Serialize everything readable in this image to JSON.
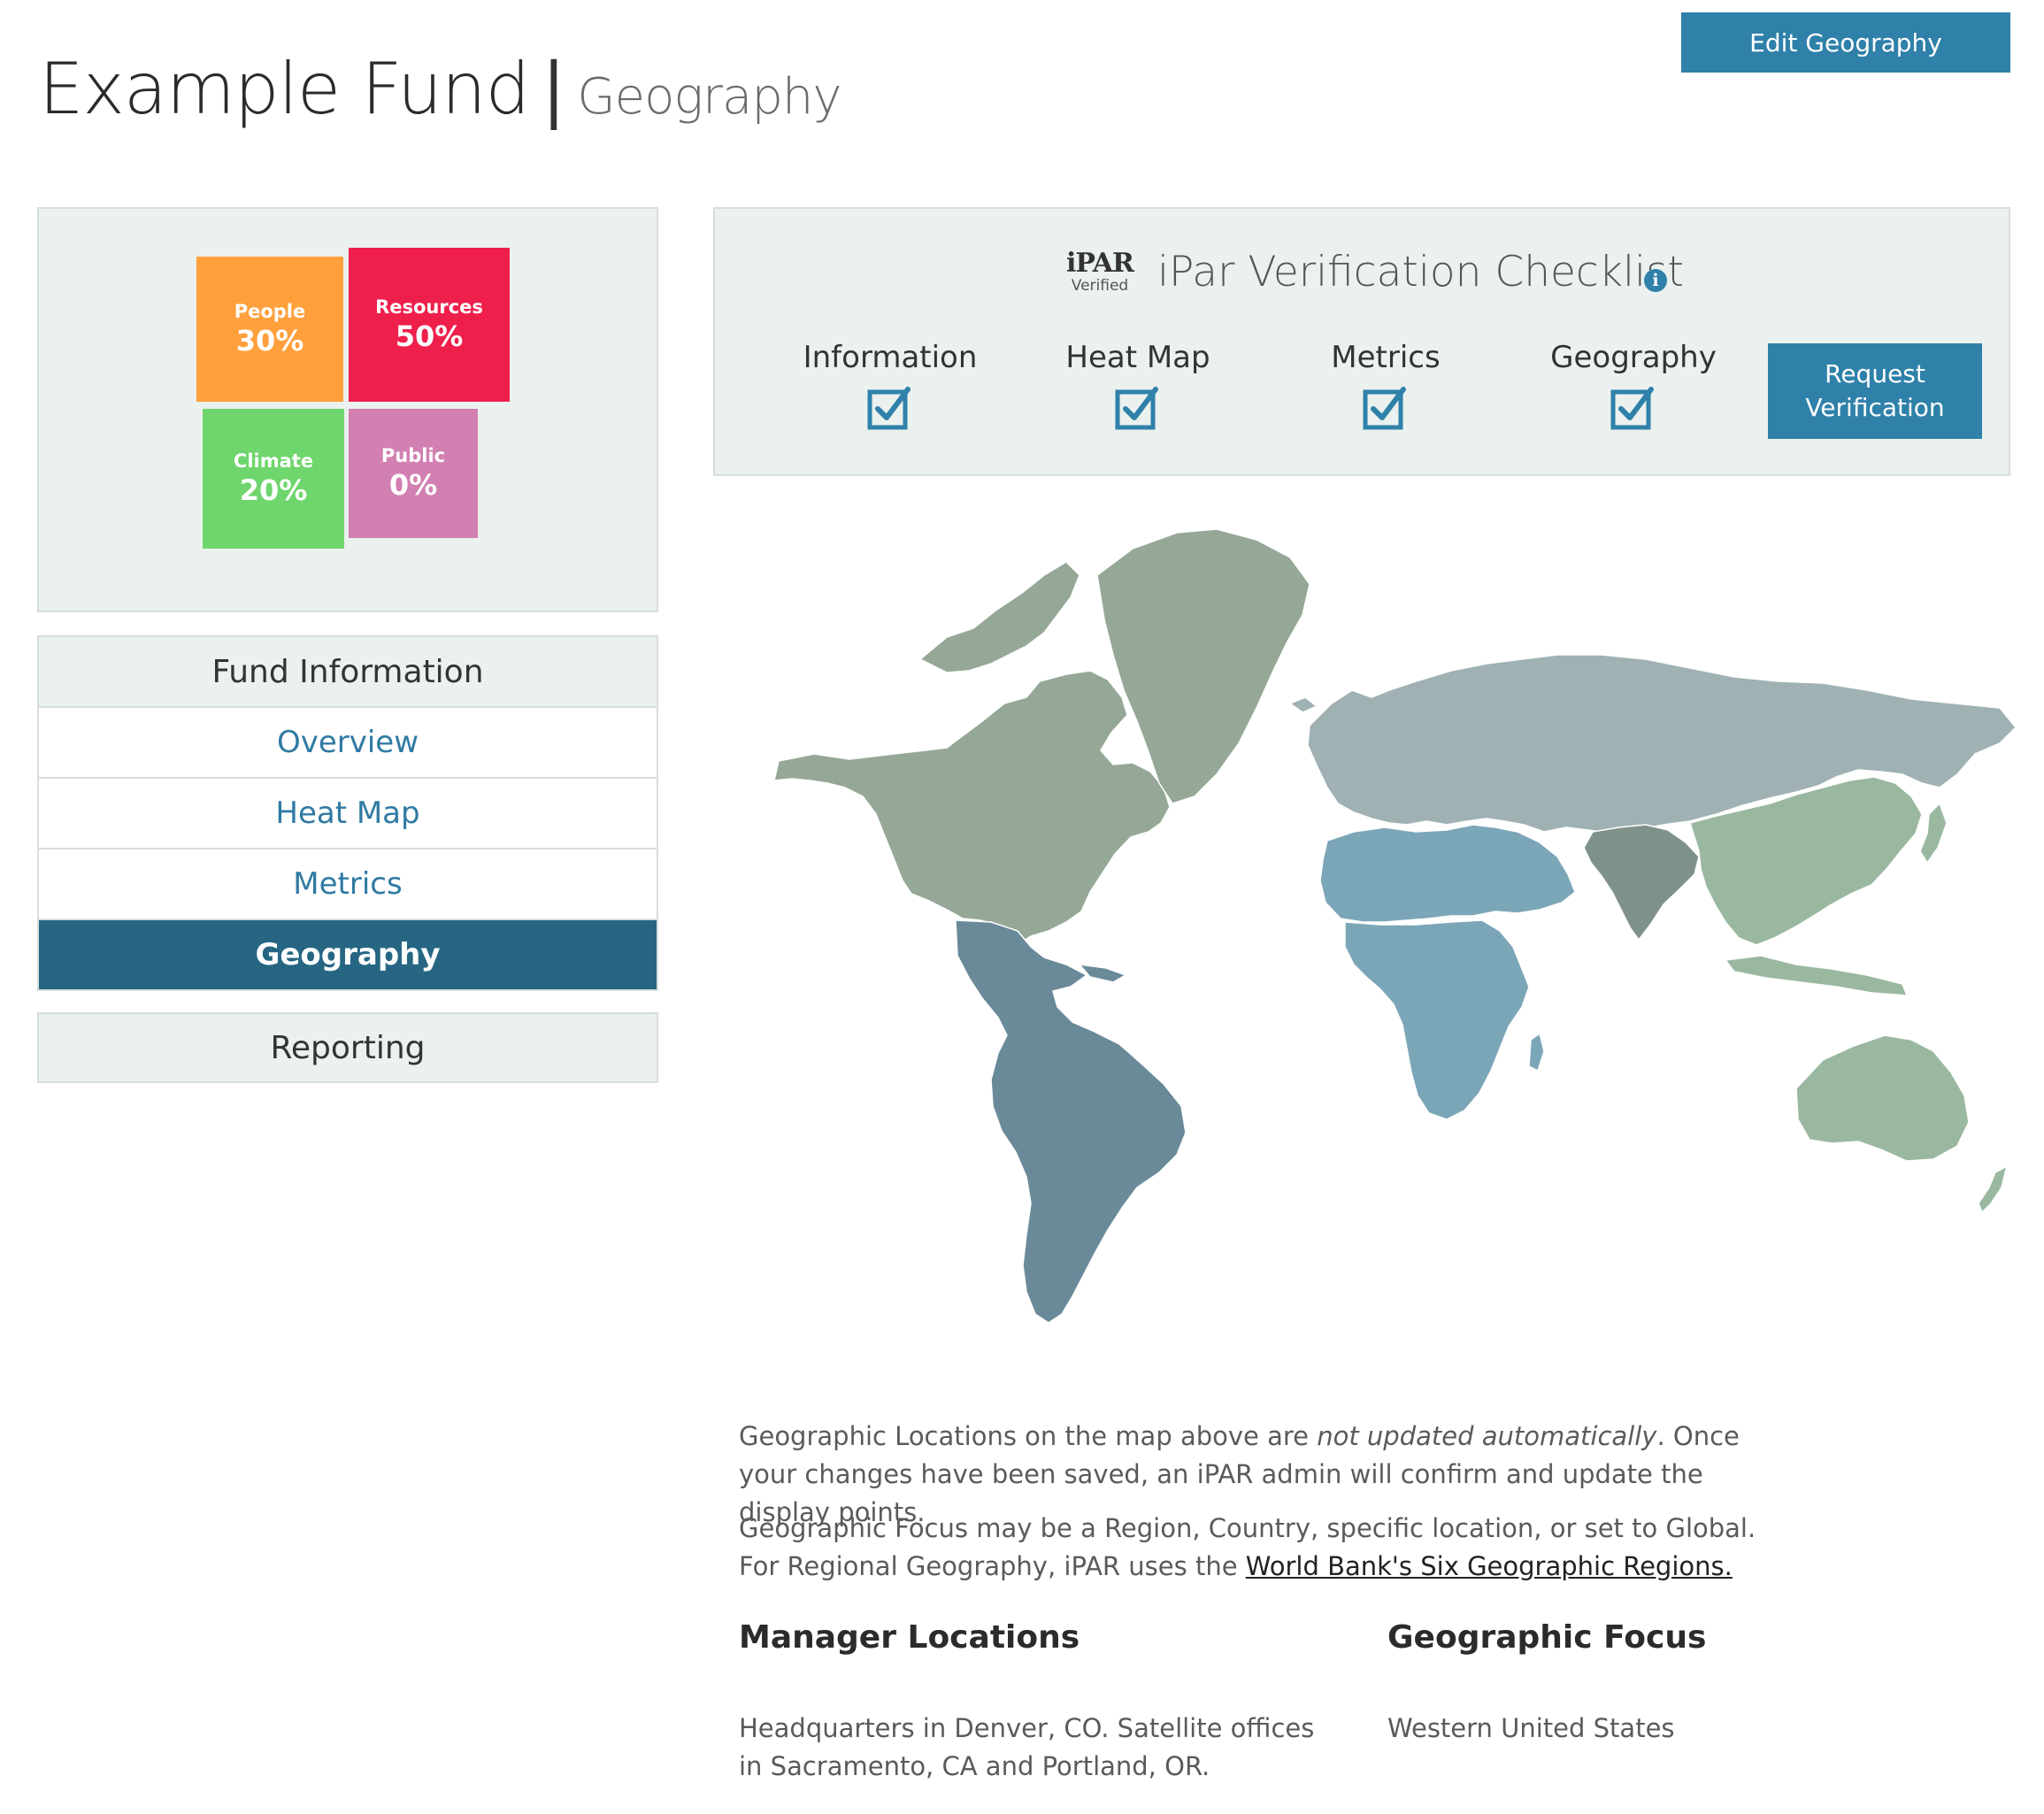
{
  "header": {
    "fund_name": "Example Fund",
    "separator": "|",
    "section": "Geography",
    "edit_label": "Edit Geography"
  },
  "allocation": [
    {
      "label": "People",
      "value": "30%",
      "color": "#ffa03c"
    },
    {
      "label": "Resources",
      "value": "50%",
      "color": "#ef1f4c"
    },
    {
      "label": "Climate",
      "value": "20%",
      "color": "#6fd66d"
    },
    {
      "label": "Public",
      "value": "0%",
      "color": "#d27fb1"
    }
  ],
  "nav": {
    "heading": "Fund Information",
    "items": [
      "Overview",
      "Heat Map",
      "Metrics",
      "Geography"
    ],
    "active": "Geography",
    "reporting": "Reporting"
  },
  "checklist": {
    "logo_text": "iPAR",
    "logo_sub": "Verified",
    "title": "iPar Verification Checklist",
    "info_icon": "info-icon",
    "items": [
      "Information",
      "Heat Map",
      "Metrics",
      "Geography"
    ],
    "request_line1": "Request",
    "request_line2": "Verification"
  },
  "notes": {
    "p1_start": "Geographic Locations on the map above are ",
    "p1_emphasis": "not updated automatically",
    "p1_end": ". Once your changes have been saved, an iPAR admin will confirm and update the display points.",
    "p2_start": "Geographic Focus may be a Region, Country, specific location, or set to Global. For Regional Geography, iPAR uses the ",
    "p2_link": "World Bank's Six Geographic Regions."
  },
  "manager_locations": {
    "title": "Manager Locations",
    "text": "Headquarters in Denver, CO. Satellite offices in Sacramento, CA and Portland, OR."
  },
  "geographic_focus": {
    "title": "Geographic Focus",
    "text": "Western United States"
  },
  "map_colors": {
    "north_america": "#95a897",
    "latin_america": "#6a8a9a",
    "europe_central_asia": "#9fb1b3",
    "middle_east_africa": "#7ba6b7",
    "south_asia": "#7f928a",
    "east_asia_pacific": "#9ab89f"
  }
}
